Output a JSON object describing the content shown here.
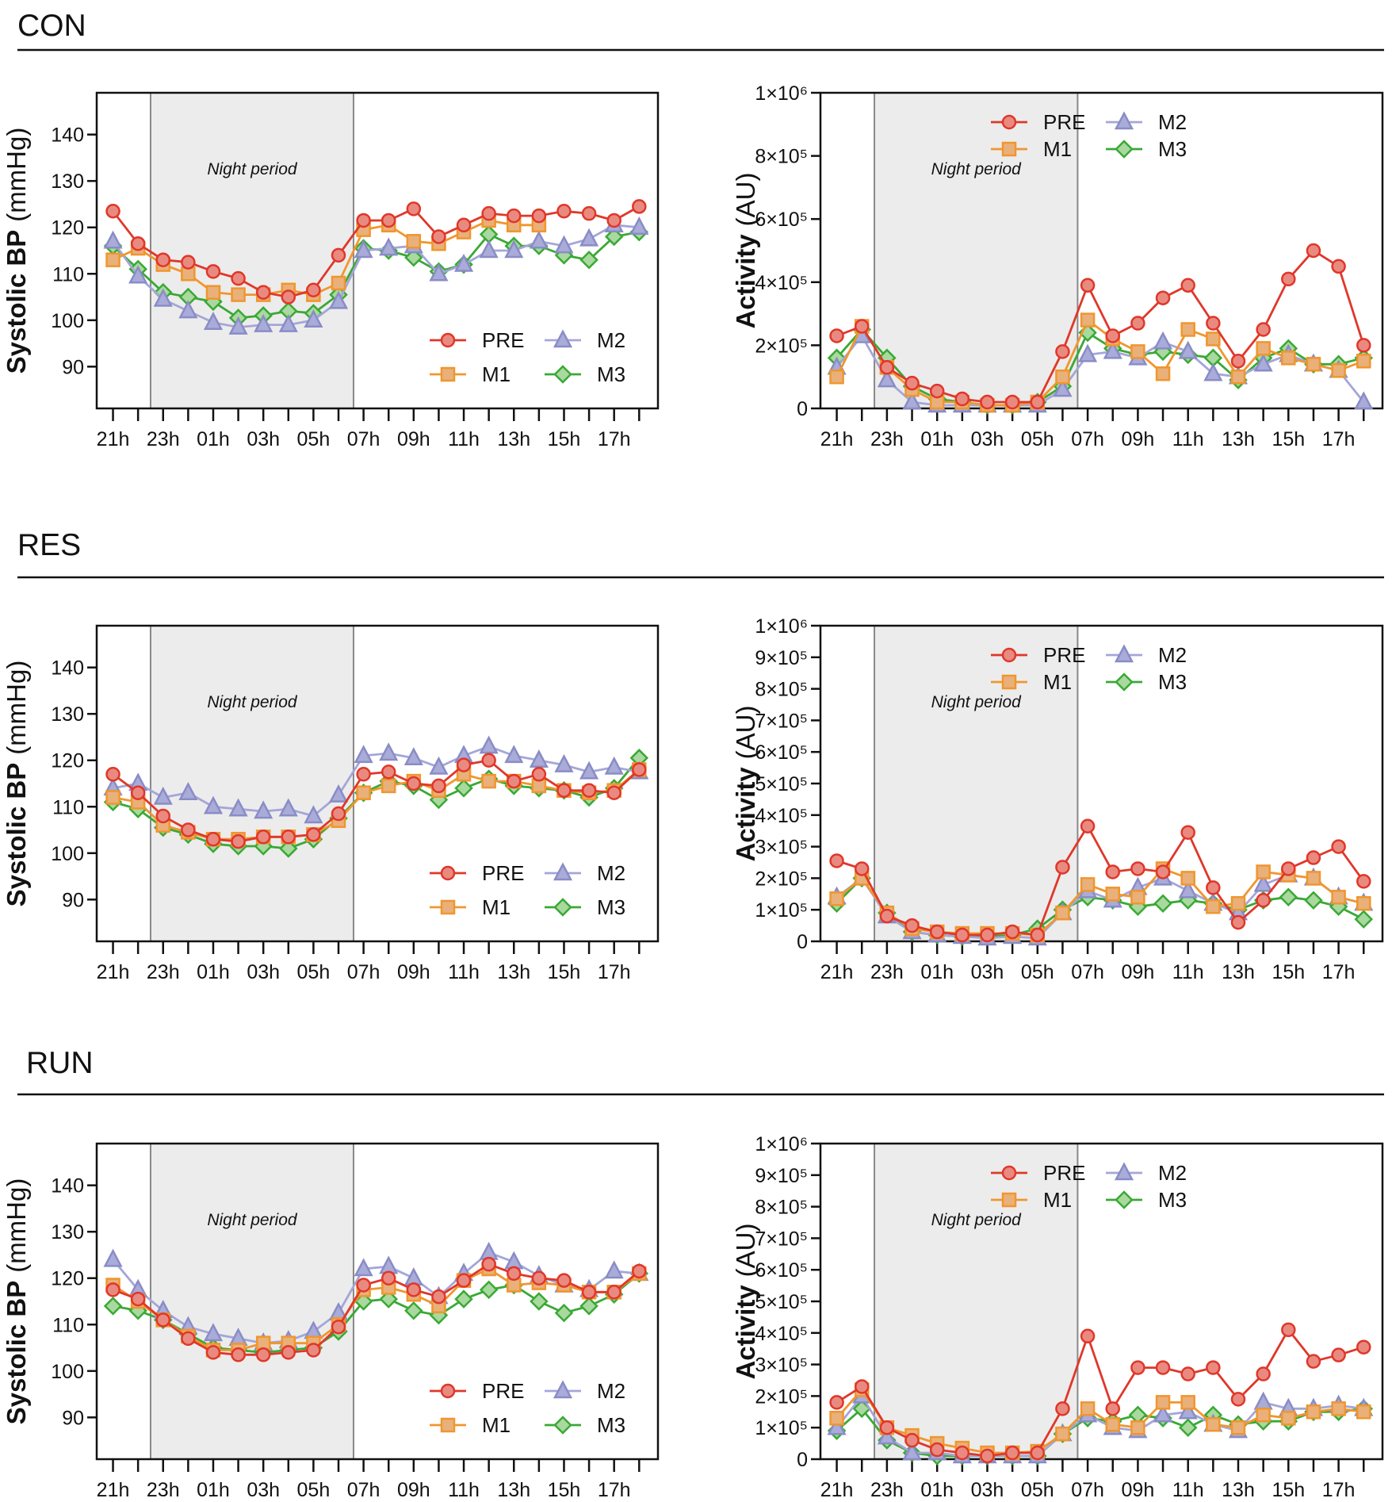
{
  "colors": {
    "PRE": {
      "line": "#e0372a",
      "fill": "#e98a80"
    },
    "M1": {
      "line": "#f0962e",
      "fill": "#e9b07a"
    },
    "M2": {
      "line": "#a4a6d8",
      "fill": "#a9abd9"
    },
    "M3": {
      "line": "#3aa935",
      "fill": "#a9d99f"
    },
    "night_fill": "#ececec"
  },
  "x_tick_labels": [
    "21h",
    "23h",
    "01h",
    "03h",
    "05h",
    "07h",
    "09h",
    "11h",
    "13h",
    "15h",
    "17h"
  ],
  "night_label": "Night period",
  "sections": [
    {
      "title": "CON"
    },
    {
      "title": "RES"
    },
    {
      "title": "RUN"
    }
  ],
  "chart_data": [
    {
      "type": "line",
      "section": "CON",
      "title": "",
      "ylabel_bold": "Systolic BP",
      "ylabel_unit": "(mmHg)",
      "xlabel": "",
      "ylim": [
        81,
        149
      ],
      "yticks": [
        90,
        100,
        110,
        120,
        130,
        140
      ],
      "ytick_labels": [
        "90",
        "100",
        "110",
        "120",
        "130",
        "140"
      ],
      "x": [
        "21h",
        "22h",
        "23h",
        "00h",
        "01h",
        "02h",
        "03h",
        "04h",
        "05h",
        "06h",
        "07h",
        "08h",
        "09h",
        "10h",
        "11h",
        "12h",
        "13h",
        "14h",
        "15h",
        "16h",
        "17h",
        "18h"
      ],
      "night_period": [
        "22h30",
        "06h30"
      ],
      "legend": "bottom-right",
      "series": [
        {
          "name": "PRE",
          "values": [
            123.5,
            116.5,
            113,
            112.5,
            110.5,
            109,
            106,
            105,
            106.5,
            114,
            121.5,
            121.5,
            124,
            118,
            120.5,
            123,
            122.5,
            122.5,
            123.5,
            123,
            121.5,
            124.5
          ]
        },
        {
          "name": "M1",
          "values": [
            113,
            115.5,
            112,
            110,
            106,
            105.5,
            105.5,
            106.5,
            105.5,
            108,
            119.5,
            120.5,
            117,
            116.5,
            119,
            121.5,
            120.5,
            120.5,
            null,
            null,
            null,
            null
          ]
        },
        {
          "name": "M2",
          "values": [
            117,
            109.5,
            104.5,
            102,
            99.5,
            98.5,
            99,
            99,
            100,
            104,
            115,
            115.5,
            116,
            110,
            112,
            115,
            115,
            117,
            116,
            117.5,
            120.5,
            120
          ]
        },
        {
          "name": "M3",
          "values": [
            116,
            111,
            106,
            105,
            104,
            100.5,
            101,
            102,
            101.5,
            105.5,
            115.5,
            115,
            113.5,
            110.5,
            112,
            118.5,
            116,
            116,
            114,
            113,
            118,
            119
          ]
        }
      ]
    },
    {
      "type": "line",
      "section": "CON",
      "title": "",
      "ylabel_bold": "Activity",
      "ylabel_unit": "(AU)",
      "xlabel": "",
      "ylim": [
        0,
        1000000
      ],
      "yticks": [
        0,
        200000,
        400000,
        600000,
        800000,
        1000000
      ],
      "ytick_labels": [
        "0",
        "2×10⁵",
        "4×10⁵",
        "6×10⁵",
        "8×10⁵",
        "1×10⁶"
      ],
      "x": [
        "21h",
        "22h",
        "23h",
        "00h",
        "01h",
        "02h",
        "03h",
        "04h",
        "05h",
        "06h",
        "07h",
        "08h",
        "09h",
        "10h",
        "11h",
        "12h",
        "13h",
        "14h",
        "15h",
        "16h",
        "17h",
        "18h"
      ],
      "night_period": [
        "22h30",
        "06h30"
      ],
      "legend": "top-right",
      "unit_scale": 100000,
      "series": [
        {
          "name": "PRE",
          "values": [
            2.3,
            2.6,
            1.3,
            0.8,
            0.55,
            0.3,
            0.2,
            0.2,
            0.2,
            1.8,
            3.9,
            2.3,
            2.7,
            3.5,
            3.9,
            2.7,
            1.5,
            2.5,
            4.1,
            5.0,
            4.5,
            2.0
          ]
        },
        {
          "name": "M1",
          "values": [
            1.0,
            2.6,
            1.3,
            0.6,
            0.2,
            0.2,
            0.1,
            0.1,
            0.2,
            1.0,
            2.8,
            2.2,
            1.8,
            1.1,
            2.5,
            2.2,
            1.0,
            1.9,
            1.6,
            1.4,
            1.2,
            1.5
          ]
        },
        {
          "name": "M2",
          "values": [
            1.3,
            2.3,
            0.9,
            0.2,
            0.1,
            0.1,
            0.1,
            0.1,
            0.1,
            0.6,
            1.7,
            1.8,
            1.6,
            2.1,
            1.8,
            1.1,
            1.0,
            1.4,
            1.7,
            1.4,
            1.2,
            0.2
          ]
        },
        {
          "name": "M3",
          "values": [
            1.6,
            2.5,
            1.6,
            0.7,
            0.3,
            0.2,
            0.1,
            0.1,
            0.2,
            0.7,
            2.4,
            1.9,
            1.7,
            1.8,
            1.7,
            1.6,
            0.9,
            1.6,
            1.9,
            1.4,
            1.4,
            1.6
          ]
        }
      ]
    },
    {
      "type": "line",
      "section": "RES",
      "title": "",
      "ylabel_bold": "Systolic BP",
      "ylabel_unit": "(mmHg)",
      "xlabel": "",
      "ylim": [
        81,
        149
      ],
      "yticks": [
        90,
        100,
        110,
        120,
        130,
        140
      ],
      "ytick_labels": [
        "90",
        "100",
        "110",
        "120",
        "130",
        "140"
      ],
      "x": [
        "21h",
        "22h",
        "23h",
        "00h",
        "01h",
        "02h",
        "03h",
        "04h",
        "05h",
        "06h",
        "07h",
        "08h",
        "09h",
        "10h",
        "11h",
        "12h",
        "13h",
        "14h",
        "15h",
        "16h",
        "17h",
        "18h"
      ],
      "night_period": [
        "22h30",
        "06h30"
      ],
      "legend": "bottom-right",
      "series": [
        {
          "name": "PRE",
          "values": [
            117,
            113,
            108,
            105,
            103,
            102.5,
            103.5,
            103.5,
            104,
            108.5,
            117,
            117.5,
            115,
            114.5,
            119,
            120,
            115.5,
            117,
            113.5,
            113.5,
            113,
            118
          ]
        },
        {
          "name": "M1",
          "values": [
            112,
            111,
            106,
            104.5,
            103,
            103,
            103.5,
            103.5,
            104,
            107,
            113,
            114.5,
            115.5,
            113.5,
            117,
            115.5,
            115.5,
            114.5,
            113.5,
            113,
            113.5,
            118
          ]
        },
        {
          "name": "M2",
          "values": [
            114,
            115,
            112,
            113,
            110,
            109.5,
            109,
            109.5,
            108,
            112.5,
            121,
            121.5,
            120.5,
            118.5,
            121,
            123,
            121,
            120,
            119,
            117.5,
            118.5,
            117.5
          ]
        },
        {
          "name": "M3",
          "values": [
            111,
            109.5,
            105.5,
            104,
            102,
            101.5,
            101.5,
            101,
            103,
            107.5,
            113,
            115.5,
            114.5,
            111.5,
            114,
            116,
            114.5,
            114,
            113.5,
            112,
            114,
            120.5
          ]
        }
      ]
    },
    {
      "type": "line",
      "section": "RES",
      "title": "",
      "ylabel_bold": "Activity",
      "ylabel_unit": "(AU)",
      "xlabel": "",
      "ylim": [
        0,
        1000000
      ],
      "yticks": [
        0,
        100000,
        200000,
        300000,
        400000,
        500000,
        600000,
        700000,
        800000,
        900000,
        1000000
      ],
      "ytick_labels": [
        "0",
        "1×10⁵",
        "2×10⁵",
        "3×10⁵",
        "4×10⁵",
        "5×10⁵",
        "6×10⁵",
        "7×10⁵",
        "8×10⁵",
        "9×10⁵",
        "1×10⁶"
      ],
      "x": [
        "21h",
        "22h",
        "23h",
        "00h",
        "01h",
        "02h",
        "03h",
        "04h",
        "05h",
        "06h",
        "07h",
        "08h",
        "09h",
        "10h",
        "11h",
        "12h",
        "13h",
        "14h",
        "15h",
        "16h",
        "17h",
        "18h"
      ],
      "night_period": [
        "22h30",
        "06h30"
      ],
      "legend": "top-right",
      "unit_scale": 100000,
      "series": [
        {
          "name": "PRE",
          "values": [
            2.55,
            2.3,
            0.8,
            0.5,
            0.3,
            0.2,
            0.2,
            0.3,
            0.2,
            2.35,
            3.65,
            2.2,
            2.3,
            2.2,
            3.45,
            1.7,
            0.6,
            1.3,
            2.3,
            2.65,
            3.0,
            1.9
          ]
        },
        {
          "name": "M1",
          "values": [
            1.35,
            2.0,
            0.9,
            0.4,
            0.3,
            0.25,
            0.25,
            0.25,
            0.2,
            0.9,
            1.8,
            1.5,
            1.4,
            2.3,
            2.0,
            1.1,
            1.2,
            2.2,
            2.1,
            2.0,
            1.4,
            1.2
          ]
        },
        {
          "name": "M2",
          "values": [
            1.4,
            2.0,
            0.8,
            0.3,
            0.2,
            0.15,
            0.1,
            0.15,
            0.1,
            0.9,
            1.6,
            1.3,
            1.7,
            2.0,
            1.6,
            1.2,
            0.9,
            1.8,
            2.1,
            2.0,
            1.4,
            1.2
          ]
        },
        {
          "name": "M3",
          "values": [
            1.2,
            2.0,
            0.9,
            0.3,
            0.2,
            0.15,
            0.15,
            0.2,
            0.4,
            1.0,
            1.4,
            1.3,
            1.1,
            1.2,
            1.3,
            1.2,
            1.0,
            1.3,
            1.4,
            1.3,
            1.1,
            0.7
          ]
        }
      ]
    },
    {
      "type": "line",
      "section": "RUN",
      "title": "",
      "ylabel_bold": "Systolic BP",
      "ylabel_unit": "(mmHg)",
      "xlabel": "",
      "ylim": [
        81,
        149
      ],
      "yticks": [
        90,
        100,
        110,
        120,
        130,
        140
      ],
      "ytick_labels": [
        "90",
        "100",
        "110",
        "120",
        "130",
        "140"
      ],
      "x": [
        "21h",
        "22h",
        "23h",
        "00h",
        "01h",
        "02h",
        "03h",
        "04h",
        "05h",
        "06h",
        "07h",
        "08h",
        "09h",
        "10h",
        "11h",
        "12h",
        "13h",
        "14h",
        "15h",
        "16h",
        "17h",
        "18h"
      ],
      "night_period": [
        "22h30",
        "06h30"
      ],
      "legend": "bottom-right",
      "series": [
        {
          "name": "PRE",
          "values": [
            117.5,
            115.5,
            111,
            107,
            104,
            103.5,
            103.5,
            104,
            104.5,
            109.5,
            118.5,
            120,
            117.5,
            116,
            119.5,
            123,
            121,
            120,
            119.5,
            117,
            117,
            121.5
          ]
        },
        {
          "name": "M1",
          "values": [
            118.5,
            115,
            111,
            107.5,
            104.5,
            104.5,
            106,
            106,
            106,
            110,
            117.5,
            118,
            116.5,
            114,
            119.5,
            122,
            118.5,
            119,
            118.5,
            117,
            117,
            121
          ]
        },
        {
          "name": "M2",
          "values": [
            124,
            117.5,
            113,
            109.5,
            108,
            107,
            106,
            106.5,
            108.5,
            112.5,
            122,
            122.5,
            120,
            116,
            121,
            125.5,
            123.5,
            120.5,
            118.5,
            117.5,
            121.5,
            121
          ]
        },
        {
          "name": "M3",
          "values": [
            114,
            113,
            111,
            108,
            105,
            104.5,
            104,
            104.5,
            105,
            108.5,
            115,
            115.5,
            113,
            112,
            115.5,
            117.5,
            118.5,
            115,
            112.5,
            114,
            116.5,
            121
          ]
        }
      ]
    },
    {
      "type": "line",
      "section": "RUN",
      "title": "",
      "ylabel_bold": "Activity",
      "ylabel_unit": "(AU)",
      "xlabel": "",
      "ylim": [
        0,
        1000000
      ],
      "yticks": [
        0,
        100000,
        200000,
        300000,
        400000,
        500000,
        600000,
        700000,
        800000,
        900000,
        1000000
      ],
      "ytick_labels": [
        "0",
        "1×10⁵",
        "2×10⁵",
        "3×10⁵",
        "4×10⁵",
        "5×10⁵",
        "6×10⁵",
        "7×10⁵",
        "8×10⁵",
        "9×10⁵",
        "1×10⁶"
      ],
      "x": [
        "21h",
        "22h",
        "23h",
        "00h",
        "01h",
        "02h",
        "03h",
        "04h",
        "05h",
        "06h",
        "07h",
        "08h",
        "09h",
        "10h",
        "11h",
        "12h",
        "13h",
        "14h",
        "15h",
        "16h",
        "17h",
        "18h"
      ],
      "night_period": [
        "22h30",
        "06h30"
      ],
      "legend": "top-right",
      "unit_scale": 100000,
      "series": [
        {
          "name": "PRE",
          "values": [
            1.8,
            2.3,
            1.0,
            0.6,
            0.3,
            0.2,
            0.1,
            0.2,
            0.2,
            1.6,
            3.9,
            1.6,
            2.9,
            2.9,
            2.7,
            2.9,
            1.9,
            2.7,
            4.1,
            3.1,
            3.3,
            3.55
          ]
        },
        {
          "name": "M1",
          "values": [
            1.3,
            2.2,
            1.0,
            0.75,
            0.5,
            0.35,
            0.2,
            0.2,
            0.25,
            0.8,
            1.6,
            1.1,
            1.0,
            1.8,
            1.8,
            1.1,
            1.0,
            1.4,
            1.3,
            1.5,
            1.6,
            1.5
          ]
        },
        {
          "name": "M2",
          "values": [
            1.0,
            2.0,
            0.7,
            0.2,
            0.2,
            0.1,
            0.1,
            0.1,
            0.1,
            0.8,
            1.4,
            1.0,
            0.9,
            1.4,
            1.5,
            1.1,
            0.9,
            1.8,
            1.6,
            1.6,
            1.7,
            1.6
          ]
        },
        {
          "name": "M3",
          "values": [
            0.9,
            1.6,
            0.6,
            0.2,
            0.1,
            0.1,
            0.1,
            0.1,
            0.1,
            0.8,
            1.3,
            1.2,
            1.4,
            1.3,
            1.0,
            1.4,
            1.1,
            1.2,
            1.2,
            1.5,
            1.5,
            1.6
          ]
        }
      ]
    }
  ]
}
